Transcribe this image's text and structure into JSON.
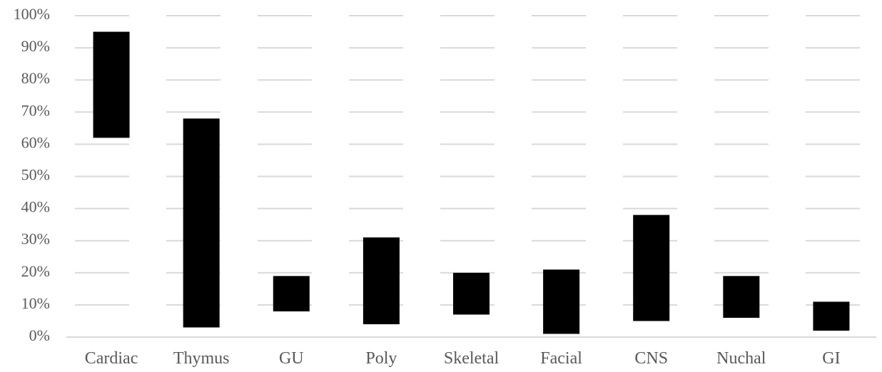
{
  "chart_data": {
    "type": "bar",
    "subtype": "floating-range",
    "categories": [
      "Cardiac",
      "Thymus",
      "GU",
      "Poly",
      "Skeletal",
      "Facial",
      "CNS",
      "Nuchal",
      "GI"
    ],
    "series": [
      {
        "low": [
          62,
          3,
          8,
          4,
          7,
          1,
          5,
          6,
          2
        ],
        "high": [
          95,
          68,
          19,
          31,
          20,
          21,
          38,
          19,
          11
        ]
      }
    ],
    "y_ticks": [
      "0%",
      "10%",
      "20%",
      "30%",
      "40%",
      "50%",
      "60%",
      "70%",
      "80%",
      "90%",
      "100%"
    ],
    "ylim": [
      0,
      100
    ],
    "y_unit": "%",
    "grid": true,
    "grid_style": "dashed-horizontal",
    "legend": "none",
    "colors": {
      "bar": "#000000",
      "grid": "#d9d9d9",
      "text": "#595959"
    }
  }
}
